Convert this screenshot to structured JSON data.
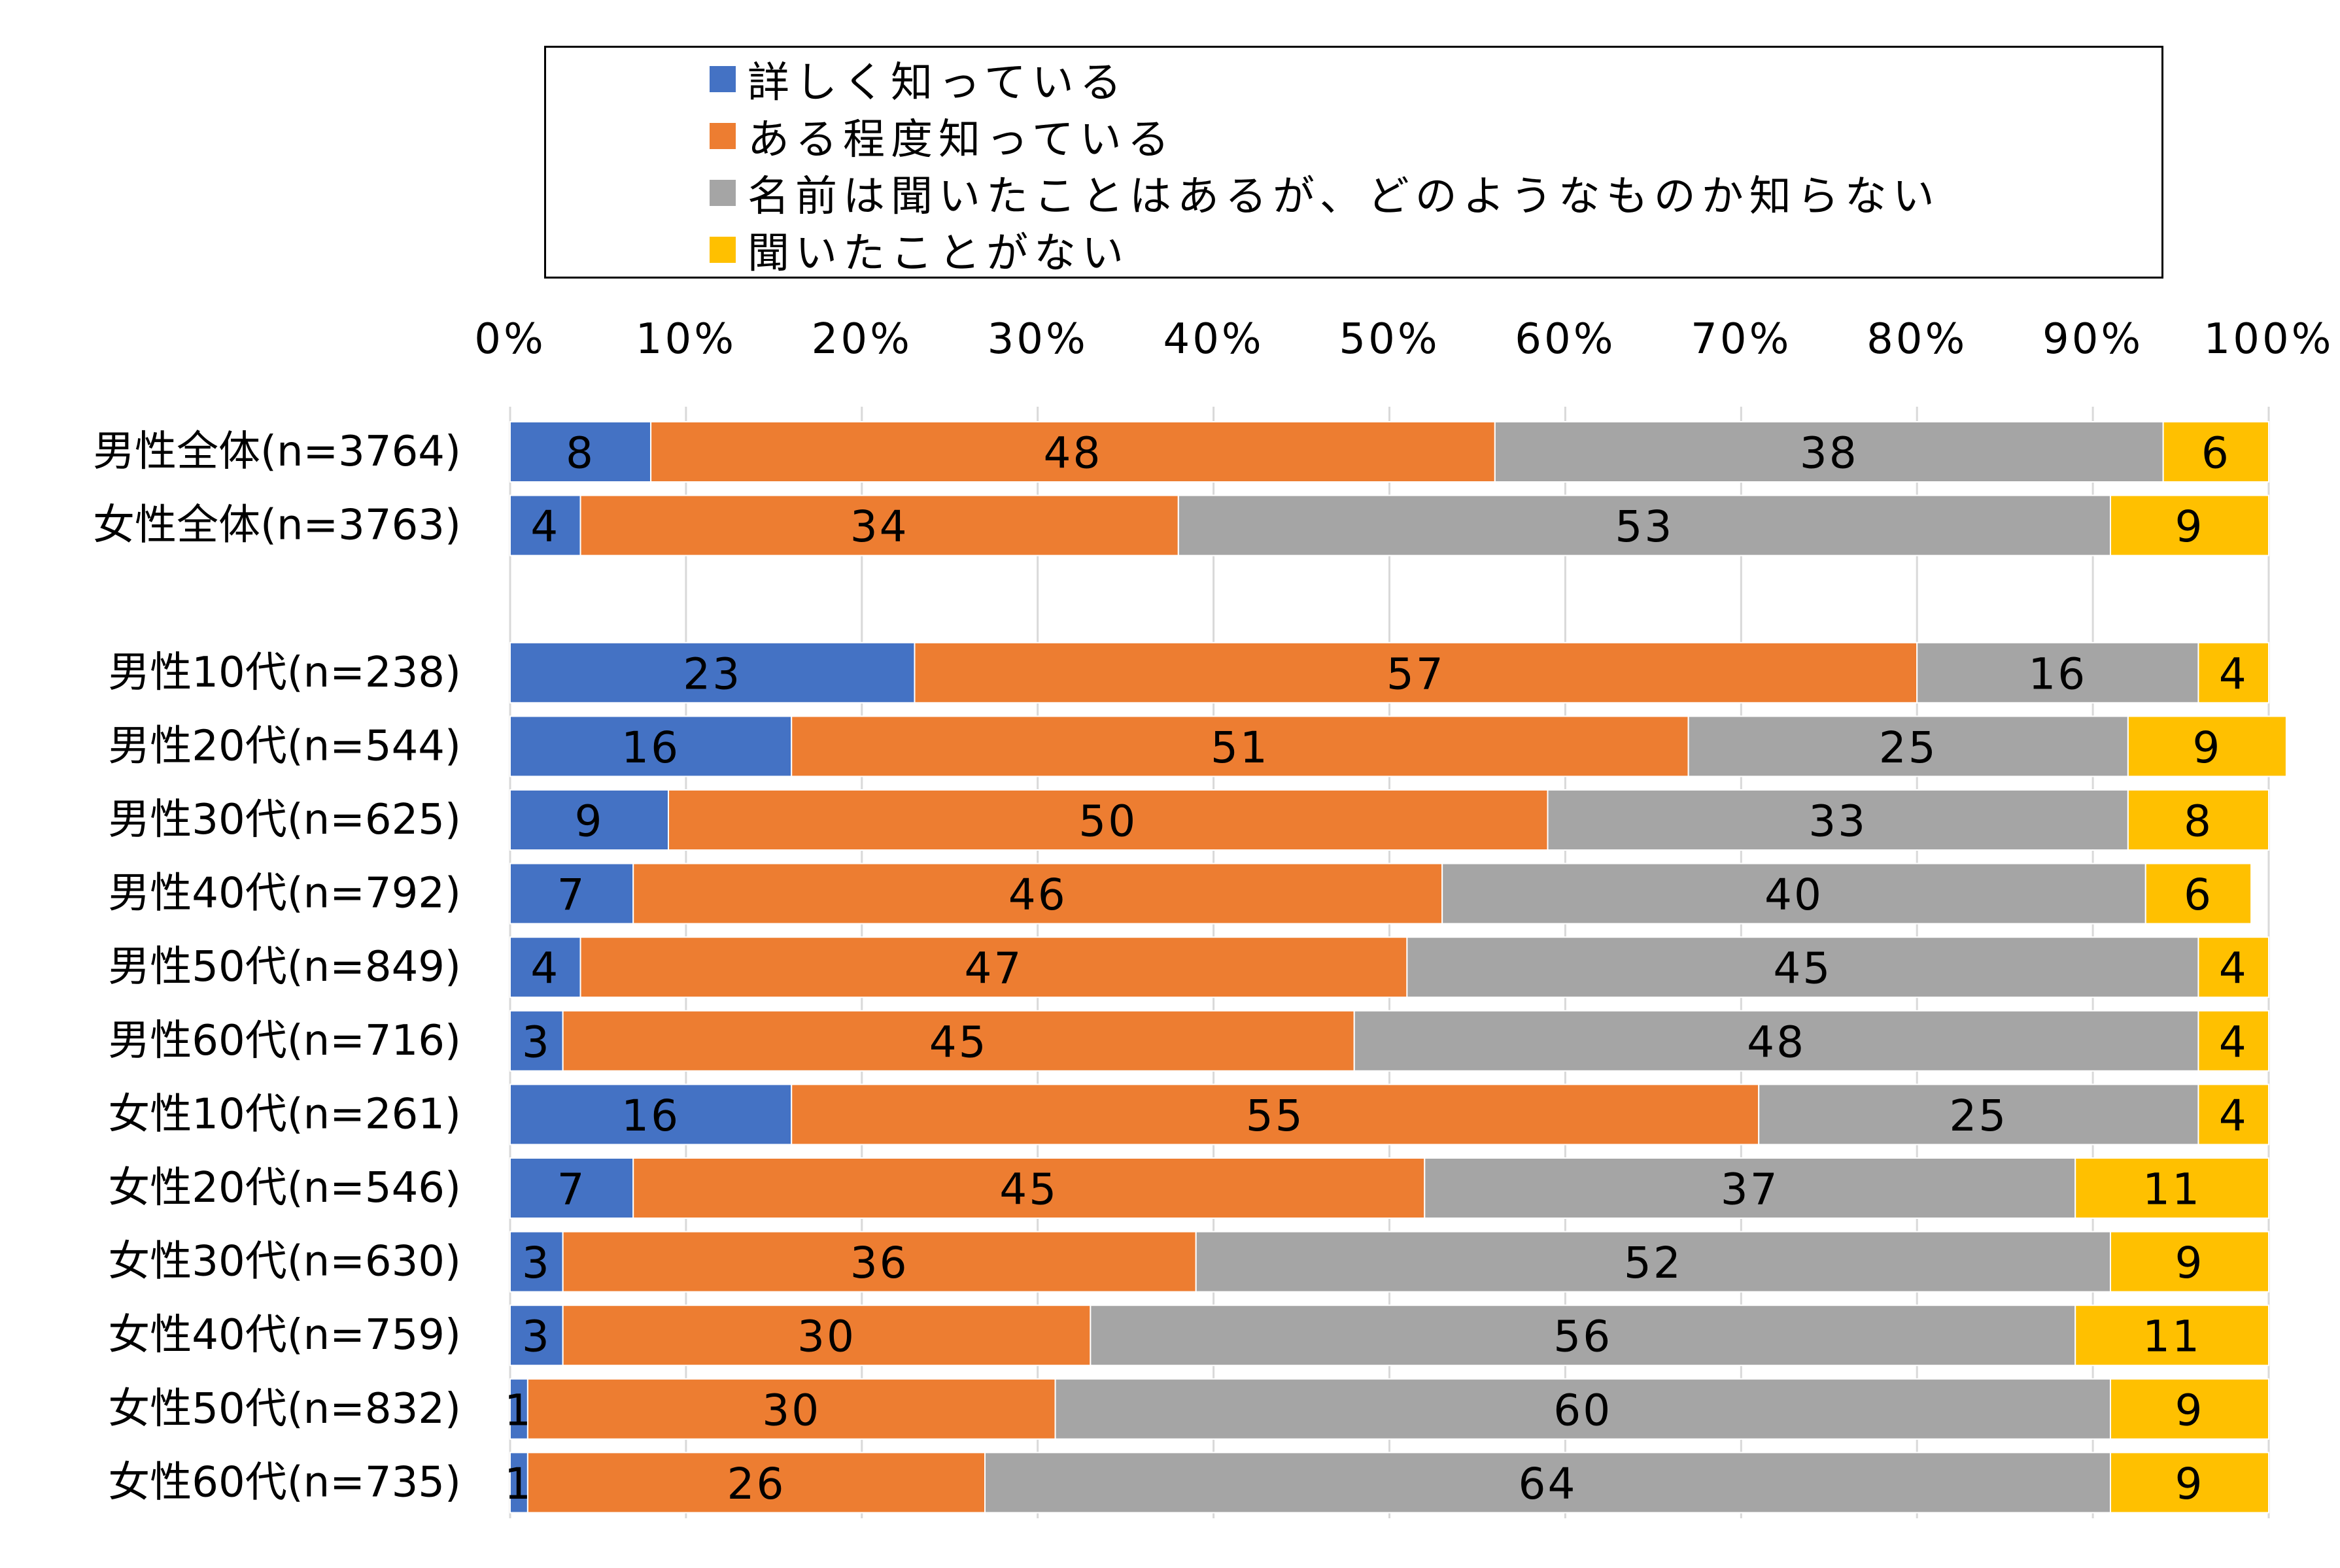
{
  "colors": {
    "series": [
      "#4472C4",
      "#ED7D31",
      "#A5A5A5",
      "#FFC000"
    ],
    "grid": "#D9D9D9",
    "text": "#000000"
  },
  "chart_data": {
    "type": "bar",
    "orientation": "horizontal",
    "stacked": "percent",
    "xlim": [
      0,
      100
    ],
    "x_ticks": [
      "0%",
      "10%",
      "20%",
      "30%",
      "40%",
      "50%",
      "60%",
      "70%",
      "80%",
      "90%",
      "100%"
    ],
    "legend_position": "top",
    "grid": true,
    "categories": [
      "男性全体(n=3764)",
      "女性全体(n=3763)",
      "",
      "男性10代(n=238)",
      "男性20代(n=544)",
      "男性30代(n=625)",
      "男性40代(n=792)",
      "男性50代(n=849)",
      "男性60代(n=716)",
      "女性10代(n=261)",
      "女性20代(n=546)",
      "女性30代(n=630)",
      "女性40代(n=759)",
      "女性50代(n=832)",
      "女性60代(n=735)"
    ],
    "series": [
      {
        "name": "詳しく知っている",
        "values": [
          8,
          4,
          null,
          23,
          16,
          9,
          7,
          4,
          3,
          16,
          7,
          3,
          3,
          1,
          1
        ]
      },
      {
        "name": "ある程度知っている",
        "values": [
          48,
          34,
          null,
          57,
          51,
          50,
          46,
          47,
          45,
          55,
          45,
          36,
          30,
          30,
          26
        ]
      },
      {
        "name": "名前は聞いたことはあるが、どのようなものか知らない",
        "values": [
          38,
          53,
          null,
          16,
          25,
          33,
          40,
          45,
          48,
          25,
          37,
          52,
          56,
          60,
          64
        ]
      },
      {
        "name": "聞いたことがない",
        "values": [
          6,
          9,
          null,
          4,
          9,
          8,
          6,
          4,
          4,
          4,
          11,
          9,
          11,
          9,
          9
        ]
      }
    ]
  }
}
